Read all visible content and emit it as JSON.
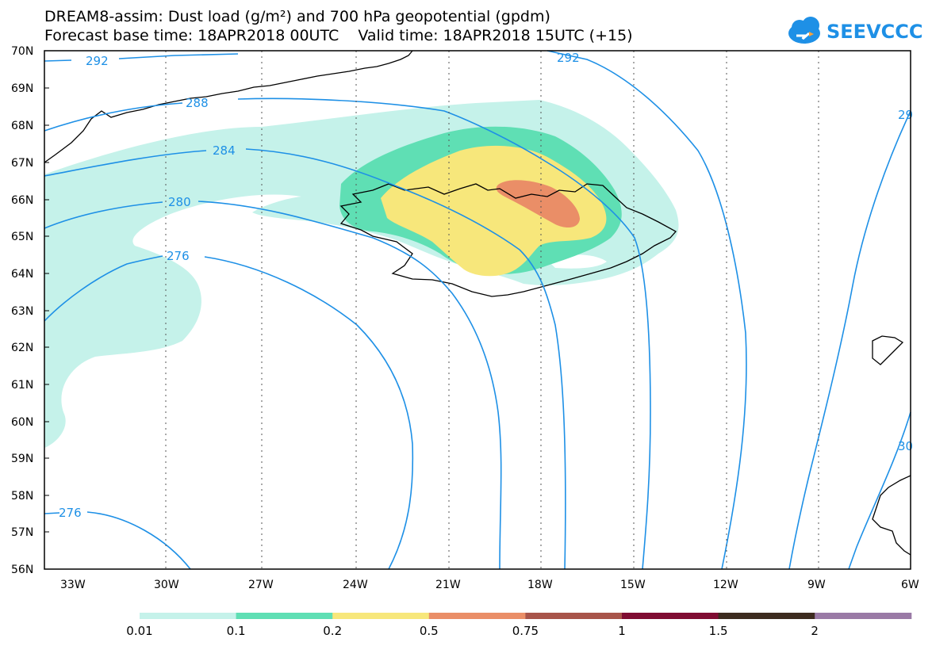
{
  "title": {
    "line1": "DREAM8-assim: Dust load (g/m²) and 700 hPa geopotential (gpdm)",
    "line2": "Forecast base time: 18APR2018 00UTC    Valid time: 18APR2018 15UTC (+15)"
  },
  "logo": {
    "text": "SEEVCCC",
    "color": "#1e90e6"
  },
  "axes": {
    "lat_labels": [
      "70N",
      "69N",
      "68N",
      "67N",
      "66N",
      "65N",
      "64N",
      "63N",
      "62N",
      "61N",
      "60N",
      "59N",
      "58N",
      "57N",
      "56N"
    ],
    "lon_labels": [
      "33W",
      "30W",
      "27W",
      "24W",
      "21W",
      "18W",
      "15W",
      "12W",
      "9W",
      "6W"
    ]
  },
  "contour_labels": [
    "292",
    "292",
    "288",
    "284",
    "280",
    "276",
    "276",
    "29",
    "30"
  ],
  "legend": {
    "breaks": [
      "0.01",
      "0.1",
      "0.2",
      "0.5",
      "0.75",
      "1",
      "1.5",
      "2"
    ],
    "colors": [
      "#c5f2ea",
      "#5fdfb4",
      "#f7e77b",
      "#ea8e67",
      "#a8544a",
      "#7f0c32",
      "#3d2b1f",
      "#9a7aa6"
    ]
  },
  "colors": {
    "geopotential": "#1e90e6",
    "coast": "#000000"
  }
}
